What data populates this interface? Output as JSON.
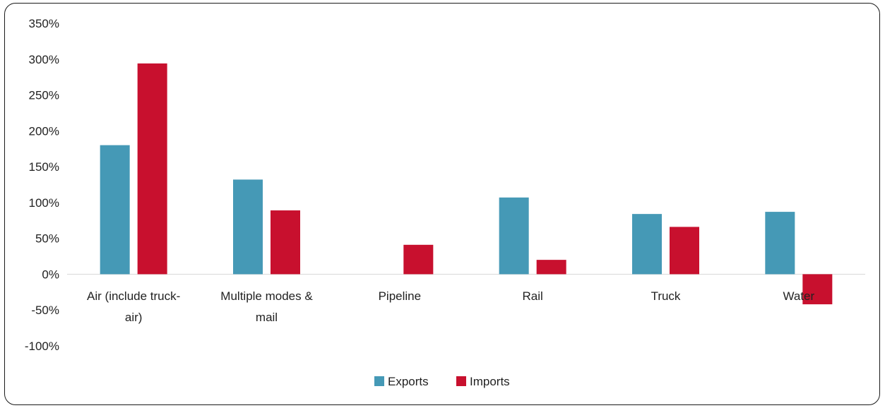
{
  "chart_data": {
    "type": "bar",
    "categories": [
      "Air (include truck-air)",
      "Multiple modes & mail",
      "Pipeline",
      "Rail",
      "Truck",
      "Water"
    ],
    "category_lines": [
      [
        "Air (include truck-",
        "air)"
      ],
      [
        "Multiple modes &",
        "mail"
      ],
      [
        "Pipeline"
      ],
      [
        "Rail"
      ],
      [
        "Truck"
      ],
      [
        "Water"
      ]
    ],
    "series": [
      {
        "name": "Exports",
        "color": "#4599b6",
        "values": [
          180,
          132,
          null,
          107,
          84,
          87
        ]
      },
      {
        "name": "Imports",
        "color": "#c8102e",
        "values": [
          294,
          89,
          41,
          20,
          66,
          -42
        ]
      }
    ],
    "ylim": [
      -100,
      350
    ],
    "yticks": [
      350,
      300,
      250,
      200,
      150,
      100,
      50,
      0,
      -50,
      -100
    ],
    "ytick_labels": [
      "350%",
      "300%",
      "250%",
      "200%",
      "150%",
      "100%",
      "50%",
      "0%",
      "-50%",
      "-100%"
    ],
    "grid": false,
    "legend_position": "bottom",
    "title": "",
    "xlabel": "",
    "ylabel": ""
  }
}
